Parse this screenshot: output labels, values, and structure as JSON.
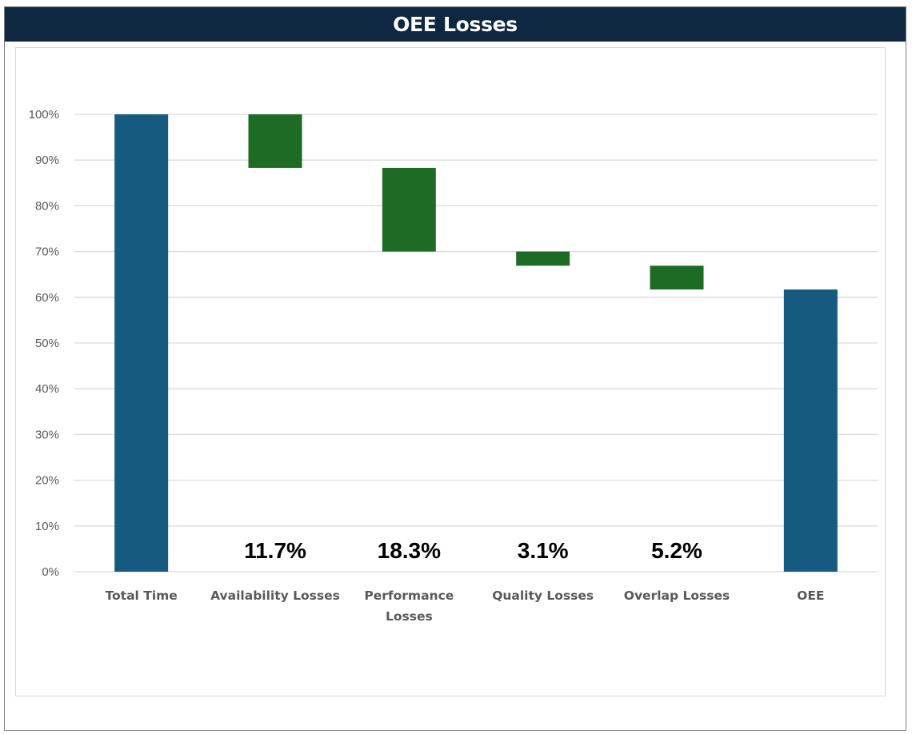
{
  "header": {
    "title": "OEE Losses"
  },
  "chart_data": {
    "type": "waterfall",
    "title": "OEE Losses",
    "xlabel": "",
    "ylabel": "",
    "ylim": [
      0,
      100
    ],
    "y_ticks": [
      "0%",
      "10%",
      "20%",
      "30%",
      "40%",
      "50%",
      "60%",
      "70%",
      "80%",
      "90%",
      "100%"
    ],
    "grid": true,
    "legend": "none",
    "categories": [
      [
        "Total Time"
      ],
      [
        "Availability Losses"
      ],
      [
        "Performance",
        "Losses"
      ],
      [
        "Quality Losses"
      ],
      [
        "Overlap Losses"
      ],
      [
        "OEE"
      ]
    ],
    "bars": [
      {
        "kind": "total",
        "start": 0,
        "end": 100
      },
      {
        "kind": "loss",
        "start": 88.3,
        "end": 100,
        "label": "11.7%"
      },
      {
        "kind": "loss",
        "start": 70.0,
        "end": 88.3,
        "label": "18.3%"
      },
      {
        "kind": "loss",
        "start": 66.9,
        "end": 70.0,
        "label": "3.1%"
      },
      {
        "kind": "loss",
        "start": 61.7,
        "end": 66.9,
        "label": "5.2%"
      },
      {
        "kind": "total",
        "start": 0,
        "end": 61.7
      }
    ],
    "colors": {
      "total": "#165a80",
      "loss": "#1e6b25",
      "grid": "#d9d9d9",
      "axis": "#d9d9d9"
    }
  }
}
